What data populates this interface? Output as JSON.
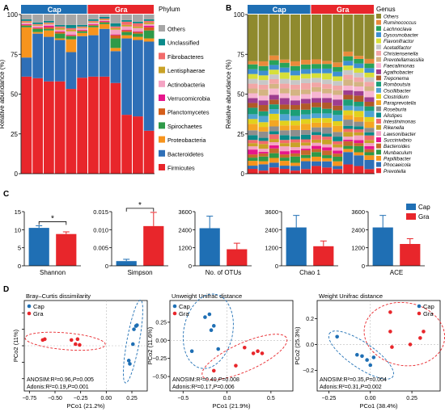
{
  "colors": {
    "cap": "#1f6fb4",
    "gra": "#e8262b"
  },
  "panels": {
    "A": "A",
    "B": "B",
    "C": "C",
    "D": "D"
  },
  "chart_data": [
    {
      "id": "A",
      "type": "bar",
      "stacked": true,
      "ylabel": "Relative abundance (%)",
      "ylim": [
        0,
        100
      ],
      "yticks": [
        0,
        25,
        50,
        75,
        100
      ],
      "groups": [
        {
          "name": "Cap",
          "n": 6
        },
        {
          "name": "Gra",
          "n": 6
        }
      ],
      "legend_title": "Phylum",
      "legend_position": "right",
      "layers": [
        {
          "name": "Firmicutes",
          "color": "#e8262b",
          "values": [
            61,
            60,
            58,
            58,
            53,
            60,
            61,
            61,
            57,
            37,
            36,
            27
          ]
        },
        {
          "name": "Bacteroidetes",
          "color": "#2e6fb7",
          "values": [
            12,
            28,
            28,
            26,
            23,
            26,
            26,
            30,
            20,
            48,
            48,
            56
          ]
        },
        {
          "name": "Proteobacteria",
          "color": "#f7941d",
          "values": [
            19,
            1,
            4,
            1,
            8,
            2,
            5,
            3,
            2,
            2,
            2,
            2
          ]
        },
        {
          "name": "Spirochaetes",
          "color": "#2e9a48",
          "values": [
            1,
            2,
            1,
            3,
            2,
            1,
            1,
            1,
            6,
            2,
            2,
            5
          ]
        },
        {
          "name": "Planctomycetes",
          "color": "#d55e1a",
          "values": [
            0.5,
            0.5,
            1,
            1,
            0.5,
            0.5,
            0.5,
            0.5,
            2,
            1,
            1,
            2
          ]
        },
        {
          "name": "Verrucomicrobia",
          "color": "#e6168c",
          "values": [
            0.5,
            0.5,
            1,
            0.5,
            0.5,
            0.5,
            0.5,
            0.5,
            0.5,
            0.5,
            0.5,
            1
          ]
        },
        {
          "name": "Actinobacteria",
          "color": "#f4a3c3",
          "values": [
            1,
            1,
            1,
            1,
            2,
            1,
            1,
            0.5,
            3,
            2,
            2,
            1
          ]
        },
        {
          "name": "Lentisphaerae",
          "color": "#c9a227",
          "values": [
            0.5,
            0.5,
            0.5,
            1,
            1,
            0.5,
            0.5,
            0.5,
            1,
            1,
            1,
            1
          ]
        },
        {
          "name": "Fibrobacteres",
          "color": "#f26b6b",
          "values": [
            0.5,
            0.5,
            0.5,
            1,
            1,
            0.5,
            0.5,
            0.5,
            1,
            2,
            2,
            1
          ]
        },
        {
          "name": "Unclassified",
          "color": "#0a8a8a",
          "values": [
            1,
            1,
            1,
            1,
            2,
            1,
            1,
            1,
            2,
            1,
            1,
            1
          ]
        },
        {
          "name": "Others",
          "color": "#a6a6a6",
          "values": [
            3,
            5,
            4,
            6.5,
            6.5,
            6.5,
            3,
            1.5,
            5.5,
            3.5,
            4.5,
            3
          ]
        }
      ]
    },
    {
      "id": "B",
      "type": "bar",
      "stacked": true,
      "ylabel": "Relative abundance (%)",
      "ylim": [
        0,
        100
      ],
      "yticks": [
        0,
        25,
        50,
        75,
        100
      ],
      "groups": [
        {
          "name": "Cap",
          "n": 6
        },
        {
          "name": "Gra",
          "n": 6
        }
      ],
      "legend_title": "Genus",
      "legend_position": "right",
      "layers": [
        {
          "name": "Prevotella",
          "color": "#e8262b",
          "values": [
            3,
            2,
            4,
            3,
            2,
            3,
            5,
            4,
            3,
            6,
            5,
            3
          ]
        },
        {
          "name": "Phocaeicola",
          "color": "#2e6fb7",
          "values": [
            2,
            4,
            3,
            2,
            3,
            5,
            3,
            4,
            2,
            8,
            7,
            6
          ]
        },
        {
          "name": "Papillibacter",
          "color": "#f7941d",
          "values": [
            3,
            2,
            3,
            3,
            2,
            2,
            3,
            2,
            3,
            2,
            2,
            3
          ]
        },
        {
          "name": "Munbaculum",
          "color": "#2e9a48",
          "values": [
            2,
            3,
            3,
            2,
            4,
            2,
            3,
            2,
            3,
            2,
            4,
            2
          ]
        },
        {
          "name": "Bacteroides",
          "color": "#c56a2b",
          "values": [
            2,
            2,
            3,
            2,
            2,
            3,
            2,
            3,
            2,
            3,
            2,
            2
          ]
        },
        {
          "name": "Succinivibrio",
          "color": "#e6168c",
          "values": [
            3,
            1,
            2,
            2,
            2,
            1,
            2,
            2,
            2,
            1,
            2,
            2
          ]
        },
        {
          "name": "Lawsonibacter",
          "color": "#f4a3c3",
          "values": [
            2,
            2,
            2,
            3,
            2,
            2,
            2,
            2,
            2,
            2,
            3,
            2
          ]
        },
        {
          "name": "Rikenella",
          "color": "#c9a227",
          "values": [
            2,
            3,
            2,
            2,
            3,
            2,
            2,
            3,
            2,
            3,
            2,
            2
          ]
        },
        {
          "name": "Intestinimonas",
          "color": "#f26b6b",
          "values": [
            2,
            2,
            3,
            2,
            2,
            2,
            3,
            2,
            2,
            2,
            2,
            3
          ]
        },
        {
          "name": "Alistipes",
          "color": "#0a8a8a",
          "values": [
            3,
            2,
            2,
            3,
            2,
            3,
            2,
            2,
            3,
            2,
            2,
            2
          ]
        },
        {
          "name": "Roseburia",
          "color": "#8e8e8e",
          "values": [
            3,
            4,
            3,
            3,
            4,
            3,
            3,
            4,
            3,
            4,
            3,
            3
          ]
        },
        {
          "name": "Paraprevotella",
          "color": "#f5a623",
          "values": [
            4,
            3,
            4,
            3,
            3,
            4,
            3,
            3,
            4,
            3,
            3,
            4
          ]
        },
        {
          "name": "Clostridium",
          "color": "#e2d11d",
          "values": [
            3,
            3,
            4,
            3,
            3,
            3,
            3,
            3,
            3,
            3,
            4,
            3
          ]
        },
        {
          "name": "Oscillibacter",
          "color": "#4fa3d1",
          "values": [
            3,
            4,
            3,
            4,
            3,
            3,
            3,
            3,
            4,
            3,
            3,
            4
          ]
        },
        {
          "name": "Romboutsia",
          "color": "#1b9e77",
          "values": [
            4,
            3,
            3,
            3,
            4,
            3,
            4,
            3,
            3,
            4,
            3,
            3
          ]
        },
        {
          "name": "Treponema",
          "color": "#b15928",
          "values": [
            3,
            4,
            3,
            3,
            3,
            4,
            3,
            4,
            3,
            3,
            4,
            3
          ]
        },
        {
          "name": "Agathobacter",
          "color": "#9e3d8f",
          "values": [
            3,
            3,
            3,
            4,
            3,
            3,
            3,
            3,
            4,
            3,
            3,
            3
          ]
        },
        {
          "name": "Faecalimonas",
          "color": "#f7b6d2",
          "values": [
            3,
            3,
            4,
            3,
            3,
            3,
            4,
            3,
            3,
            3,
            3,
            4
          ]
        },
        {
          "name": "Prevotellamassilia",
          "color": "#d4b483",
          "values": [
            3,
            4,
            3,
            3,
            4,
            3,
            3,
            3,
            3,
            4,
            3,
            3
          ]
        },
        {
          "name": "Christensenella",
          "color": "#f2a6a6",
          "values": [
            3,
            3,
            3,
            3,
            3,
            4,
            3,
            3,
            3,
            3,
            3,
            3
          ]
        },
        {
          "name": "Acetatifactor",
          "color": "#c7c7c7",
          "values": [
            3,
            3,
            3,
            3,
            3,
            3,
            3,
            3,
            3,
            3,
            3,
            3
          ]
        },
        {
          "name": "Flavonifractor",
          "color": "#d7df3a",
          "values": [
            3,
            3,
            3,
            4,
            3,
            3,
            3,
            4,
            3,
            3,
            3,
            3
          ]
        },
        {
          "name": "Dysosmobacter",
          "color": "#3f8fd2",
          "values": [
            3,
            3,
            3,
            3,
            3,
            3,
            3,
            3,
            3,
            3,
            3,
            3
          ]
        },
        {
          "name": "Lachnoclava",
          "color": "#28a35a",
          "values": [
            3,
            3,
            3,
            3,
            3,
            3,
            3,
            3,
            3,
            3,
            3,
            3
          ]
        },
        {
          "name": "Ruminococcus",
          "color": "#e98a3b",
          "values": [
            2,
            3,
            3,
            2,
            3,
            3,
            3,
            2,
            3,
            3,
            2,
            3
          ]
        },
        {
          "name": "Others",
          "color": "#8f8a2e",
          "values": [
            29,
            30,
            26,
            28,
            30,
            29,
            29,
            30,
            31,
            24,
            27,
            29
          ]
        }
      ]
    },
    {
      "id": "C1",
      "type": "bar",
      "xlabel": "Shannon",
      "categories": [
        "Cap",
        "Gra"
      ],
      "values": [
        10.5,
        8.8
      ],
      "errors": [
        0.6,
        0.6
      ],
      "ylim": [
        0,
        15
      ],
      "yticks": [
        0,
        5,
        10,
        15
      ],
      "significance": "*"
    },
    {
      "id": "C2",
      "type": "bar",
      "xlabel": "Simpson",
      "categories": [
        "Cap",
        "Gra"
      ],
      "values": [
        0.0013,
        0.011
      ],
      "errors": [
        0.0005,
        0.0038
      ],
      "ylim": [
        0,
        0.015
      ],
      "yticks": [
        0,
        0.005,
        0.01,
        0.015
      ],
      "ytick_labels": [
        "0",
        "0.005",
        "0.010",
        "0.015"
      ],
      "significance": "*"
    },
    {
      "id": "C3",
      "type": "bar",
      "xlabel": "No. of OTUs",
      "categories": [
        "Cap",
        "Gra"
      ],
      "values": [
        2500,
        1100
      ],
      "errors": [
        800,
        400
      ],
      "ylim": [
        0,
        3600
      ],
      "yticks": [
        0,
        1200,
        2400,
        3600
      ]
    },
    {
      "id": "C4",
      "type": "bar",
      "xlabel": "Chao 1",
      "categories": [
        "Cap",
        "Gra"
      ],
      "values": [
        2550,
        1300
      ],
      "errors": [
        800,
        350
      ],
      "ylim": [
        0,
        3600
      ],
      "yticks": [
        0,
        1200,
        2400,
        3600
      ]
    },
    {
      "id": "C5",
      "type": "bar",
      "xlabel": "ACE",
      "categories": [
        "Cap",
        "Gra"
      ],
      "values": [
        2550,
        1450
      ],
      "errors": [
        800,
        350
      ],
      "ylim": [
        0,
        3600
      ],
      "yticks": [
        0,
        1200,
        2400,
        3600
      ]
    },
    {
      "id": "D1",
      "type": "scatter",
      "title": "Bray–Curtis dissimilarity",
      "xlabel": "PCo1 (21.2%)",
      "ylabel": "PCo2 (11%)",
      "xlim": [
        -0.8,
        0.4
      ],
      "ylim": [
        -0.55,
        0.55
      ],
      "xticks": [
        -0.75,
        -0.5,
        -0.25,
        0,
        0.25
      ],
      "xtick_labels": [
        "−0.75",
        "−0.50",
        "−0.25",
        "0.00",
        "0.25"
      ],
      "yticks": [
        -0.4,
        -0.2,
        0,
        0.2,
        0.4
      ],
      "ytick_labels": [],
      "series": [
        {
          "name": "Cap",
          "color": "#1f6fb4",
          "x": [
            0.29,
            0.3,
            0.27,
            0.26,
            0.22,
            0.23
          ],
          "y": [
            0.24,
            0.25,
            0.2,
            0.02,
            -0.18,
            -0.22
          ]
        },
        {
          "name": "Gra",
          "color": "#e8262b",
          "x": [
            -0.62,
            -0.6,
            -0.34,
            -0.3,
            -0.28,
            -0.26
          ],
          "y": [
            0.07,
            0.08,
            0.07,
            0.02,
            0.08,
            0.01
          ]
        }
      ],
      "annotations": [
        "ANOSIM:R²=0.96,P=0.005",
        "Adonis:R²=0.19,P=0.001"
      ],
      "legend_position": "top-left"
    },
    {
      "id": "D2",
      "type": "scatter",
      "title": "Unweight Unifrac distance",
      "xlabel": "PCo1 (21.9%)",
      "ylabel": "PCo2 (11.6%)",
      "xlim": [
        -0.65,
        0.75
      ],
      "ylim": [
        -0.7,
        0.55
      ],
      "xticks": [
        -0.5,
        0,
        0.5
      ],
      "xtick_labels": [
        "−0.5",
        "0.0",
        "0.5"
      ],
      "yticks": [
        -0.5,
        -0.25,
        0,
        0.25
      ],
      "ytick_labels": [
        "−0.50",
        "−0.25",
        "0.00",
        "0.25"
      ],
      "series": [
        {
          "name": "Cap",
          "color": "#1f6fb4",
          "x": [
            -0.25,
            -0.2,
            -0.15,
            -0.18,
            -0.1,
            -0.4
          ],
          "y": [
            0.32,
            0.36,
            0.2,
            0.14,
            -0.12,
            -0.15
          ]
        },
        {
          "name": "Gra",
          "color": "#e8262b",
          "x": [
            -0.15,
            0.1,
            0.2,
            0.3,
            0.35,
            0.4
          ],
          "y": [
            -0.42,
            -0.35,
            -0.1,
            -0.18,
            -0.15,
            -0.18
          ]
        }
      ],
      "annotations": [
        "ANOSIM:R²=0.40,P=0.008",
        "Adonis:R²=0.17,P=0.006"
      ],
      "legend_position": "top-left"
    },
    {
      "id": "D3",
      "type": "scatter",
      "title": "Weight Unifrac distance",
      "xlabel": "PCo1 (38.4%)",
      "ylabel": "PCo2 (25.3%)",
      "xlim": [
        -0.32,
        0.42
      ],
      "ylim": [
        -0.36,
        0.34
      ],
      "xticks": [
        -0.25,
        0,
        0.25
      ],
      "xtick_labels": [
        "−0.25",
        "0.00",
        "0.25"
      ],
      "yticks": [
        -0.2,
        0,
        0.2
      ],
      "ytick_labels": [
        "−0.2",
        "0.0",
        "0.2"
      ],
      "series": [
        {
          "name": "Cap",
          "color": "#1f6fb4",
          "x": [
            -0.2,
            -0.08,
            -0.05,
            -0.02,
            0.02,
            0.0
          ],
          "y": [
            0.06,
            -0.08,
            -0.09,
            -0.12,
            -0.1,
            -0.16
          ]
        },
        {
          "name": "Gra",
          "color": "#e8262b",
          "x": [
            0.12,
            0.12,
            0.13,
            0.24,
            0.3,
            0.32
          ],
          "y": [
            0.25,
            0.1,
            -0.02,
            0.0,
            0.05,
            0.1
          ]
        }
      ],
      "annotations": [
        "ANOSIM:R²=0.35,P=0.004",
        "Adonis:R²=0.31,P=0.002"
      ],
      "legend_position": "top-right"
    }
  ]
}
